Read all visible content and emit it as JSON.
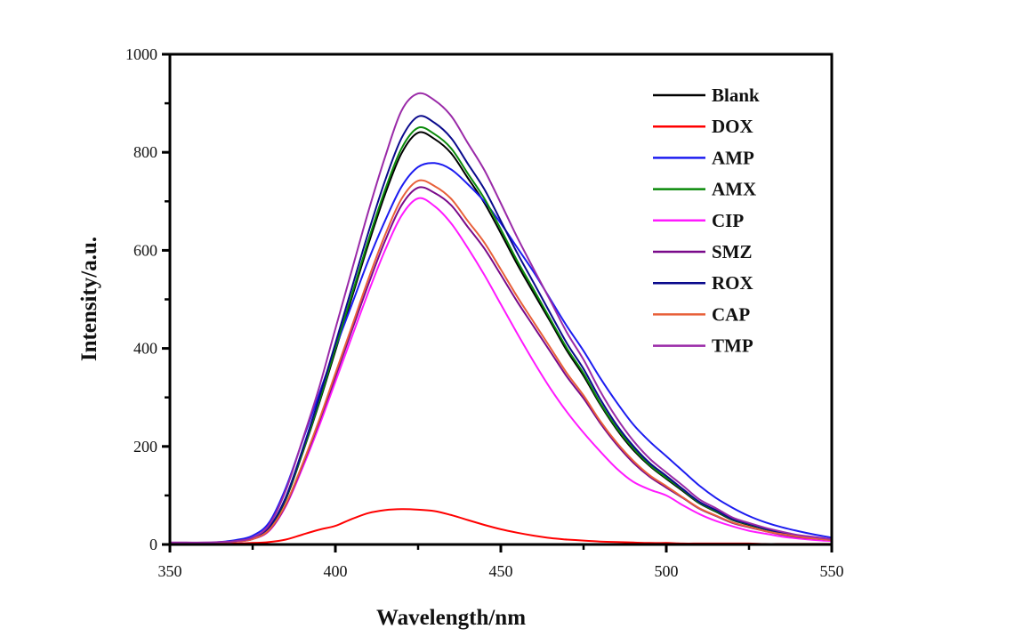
{
  "chart_data": {
    "type": "line",
    "title": "",
    "xlabel": "Wavelength/nm",
    "ylabel": "Intensity/a.u.",
    "xlim": [
      350,
      550
    ],
    "ylim": [
      0,
      1000
    ],
    "xticks": [
      350,
      400,
      450,
      500,
      550
    ],
    "yticks": [
      0,
      200,
      400,
      600,
      800,
      1000
    ],
    "grid": false,
    "legend_position": "top-right",
    "x": [
      350,
      355,
      360,
      365,
      370,
      375,
      380,
      385,
      390,
      395,
      400,
      405,
      410,
      415,
      420,
      425,
      430,
      435,
      440,
      445,
      450,
      455,
      460,
      465,
      470,
      475,
      480,
      485,
      490,
      495,
      500,
      505,
      510,
      515,
      520,
      525,
      530,
      535,
      540,
      545,
      550
    ],
    "series": [
      {
        "name": "Blank",
        "color": "#000000",
        "values": [
          3,
          3,
          3,
          4,
          7,
          13,
          34,
          92,
          185,
          286,
          395,
          504,
          613,
          714,
          798,
          840,
          827,
          798,
          748,
          697,
          635,
          571,
          512,
          454,
          395,
          344,
          286,
          235,
          193,
          160,
          134,
          109,
          84,
          67,
          50,
          40,
          31,
          24,
          18,
          13,
          10
        ]
      },
      {
        "name": "DOX",
        "color": "#ff0000",
        "values": [
          2,
          2,
          2,
          2,
          2,
          3,
          5,
          10,
          20,
          30,
          38,
          52,
          64,
          70,
          72,
          71,
          68,
          60,
          50,
          40,
          31,
          24,
          18,
          13,
          10,
          8,
          6,
          5,
          4,
          3,
          3,
          2,
          2,
          2,
          2,
          2,
          1,
          1,
          1,
          1,
          1
        ]
      },
      {
        "name": "AMP",
        "color": "#1c1cf0",
        "values": [
          3,
          3,
          3,
          5,
          9,
          18,
          45,
          115,
          210,
          305,
          400,
          490,
          580,
          660,
          730,
          770,
          778,
          765,
          735,
          700,
          655,
          605,
          555,
          500,
          445,
          395,
          340,
          290,
          245,
          210,
          180,
          150,
          120,
          95,
          75,
          58,
          45,
          35,
          27,
          20,
          14
        ]
      },
      {
        "name": "AMX",
        "color": "#0a8a0a",
        "values": [
          3,
          3,
          3,
          4,
          7,
          13,
          34,
          94,
          187,
          289,
          400,
          510,
          621,
          723,
          808,
          850,
          837,
          808,
          757,
          706,
          643,
          578,
          519,
          459,
          400,
          349,
          289,
          238,
          196,
          162,
          136,
          111,
          85,
          68,
          51,
          41,
          31,
          24,
          18,
          14,
          10
        ]
      },
      {
        "name": "CIP",
        "color": "#ff1aff",
        "values": [
          3,
          3,
          3,
          4,
          6,
          11,
          28,
          78,
          155,
          240,
          332,
          424,
          515,
          600,
          671,
          706,
          690,
          655,
          605,
          550,
          490,
          430,
          372,
          318,
          270,
          228,
          190,
          155,
          128,
          112,
          100,
          80,
          62,
          48,
          37,
          28,
          22,
          16,
          12,
          9,
          7
        ]
      },
      {
        "name": "SMZ",
        "color": "#7a0a8a",
        "values": [
          3,
          3,
          3,
          4,
          6,
          11,
          29,
          80,
          160,
          248,
          342,
          437,
          531,
          619,
          692,
          728,
          717,
          692,
          648,
          604,
          550,
          495,
          444,
          393,
          342,
          298,
          248,
          204,
          167,
          138,
          116,
          95,
          73,
          58,
          44,
          35,
          27,
          20,
          15,
          12,
          9
        ]
      },
      {
        "name": "ROX",
        "color": "#0a0a8c",
        "values": [
          3,
          3,
          3,
          4,
          7,
          13,
          35,
          96,
          192,
          297,
          410,
          524,
          637,
          742,
          829,
          873,
          860,
          829,
          777,
          725,
          660,
          594,
          533,
          471,
          410,
          358,
          297,
          244,
          201,
          166,
          140,
          113,
          87,
          70,
          52,
          42,
          32,
          24,
          18,
          14,
          10
        ]
      },
      {
        "name": "CAP",
        "color": "#e8603a",
        "values": [
          3,
          3,
          3,
          4,
          6,
          11,
          30,
          82,
          163,
          252,
          349,
          445,
          542,
          631,
          705,
          742,
          731,
          705,
          660,
          616,
          561,
          505,
          453,
          401,
          349,
          304,
          252,
          208,
          171,
          141,
          119,
          96,
          74,
          59,
          45,
          36,
          27,
          21,
          16,
          12,
          9
        ]
      },
      {
        "name": "TMP",
        "color": "#9a2aa8",
        "values": [
          4,
          4,
          4,
          5,
          7,
          14,
          40,
          110,
          212,
          318,
          440,
          560,
          680,
          790,
          885,
          920,
          906,
          874,
          819,
          764,
          696,
          626,
          561,
          497,
          432,
          377,
          313,
          258,
          212,
          175,
          147,
          120,
          92,
          74,
          55,
          44,
          34,
          26,
          19,
          15,
          11
        ]
      }
    ]
  }
}
